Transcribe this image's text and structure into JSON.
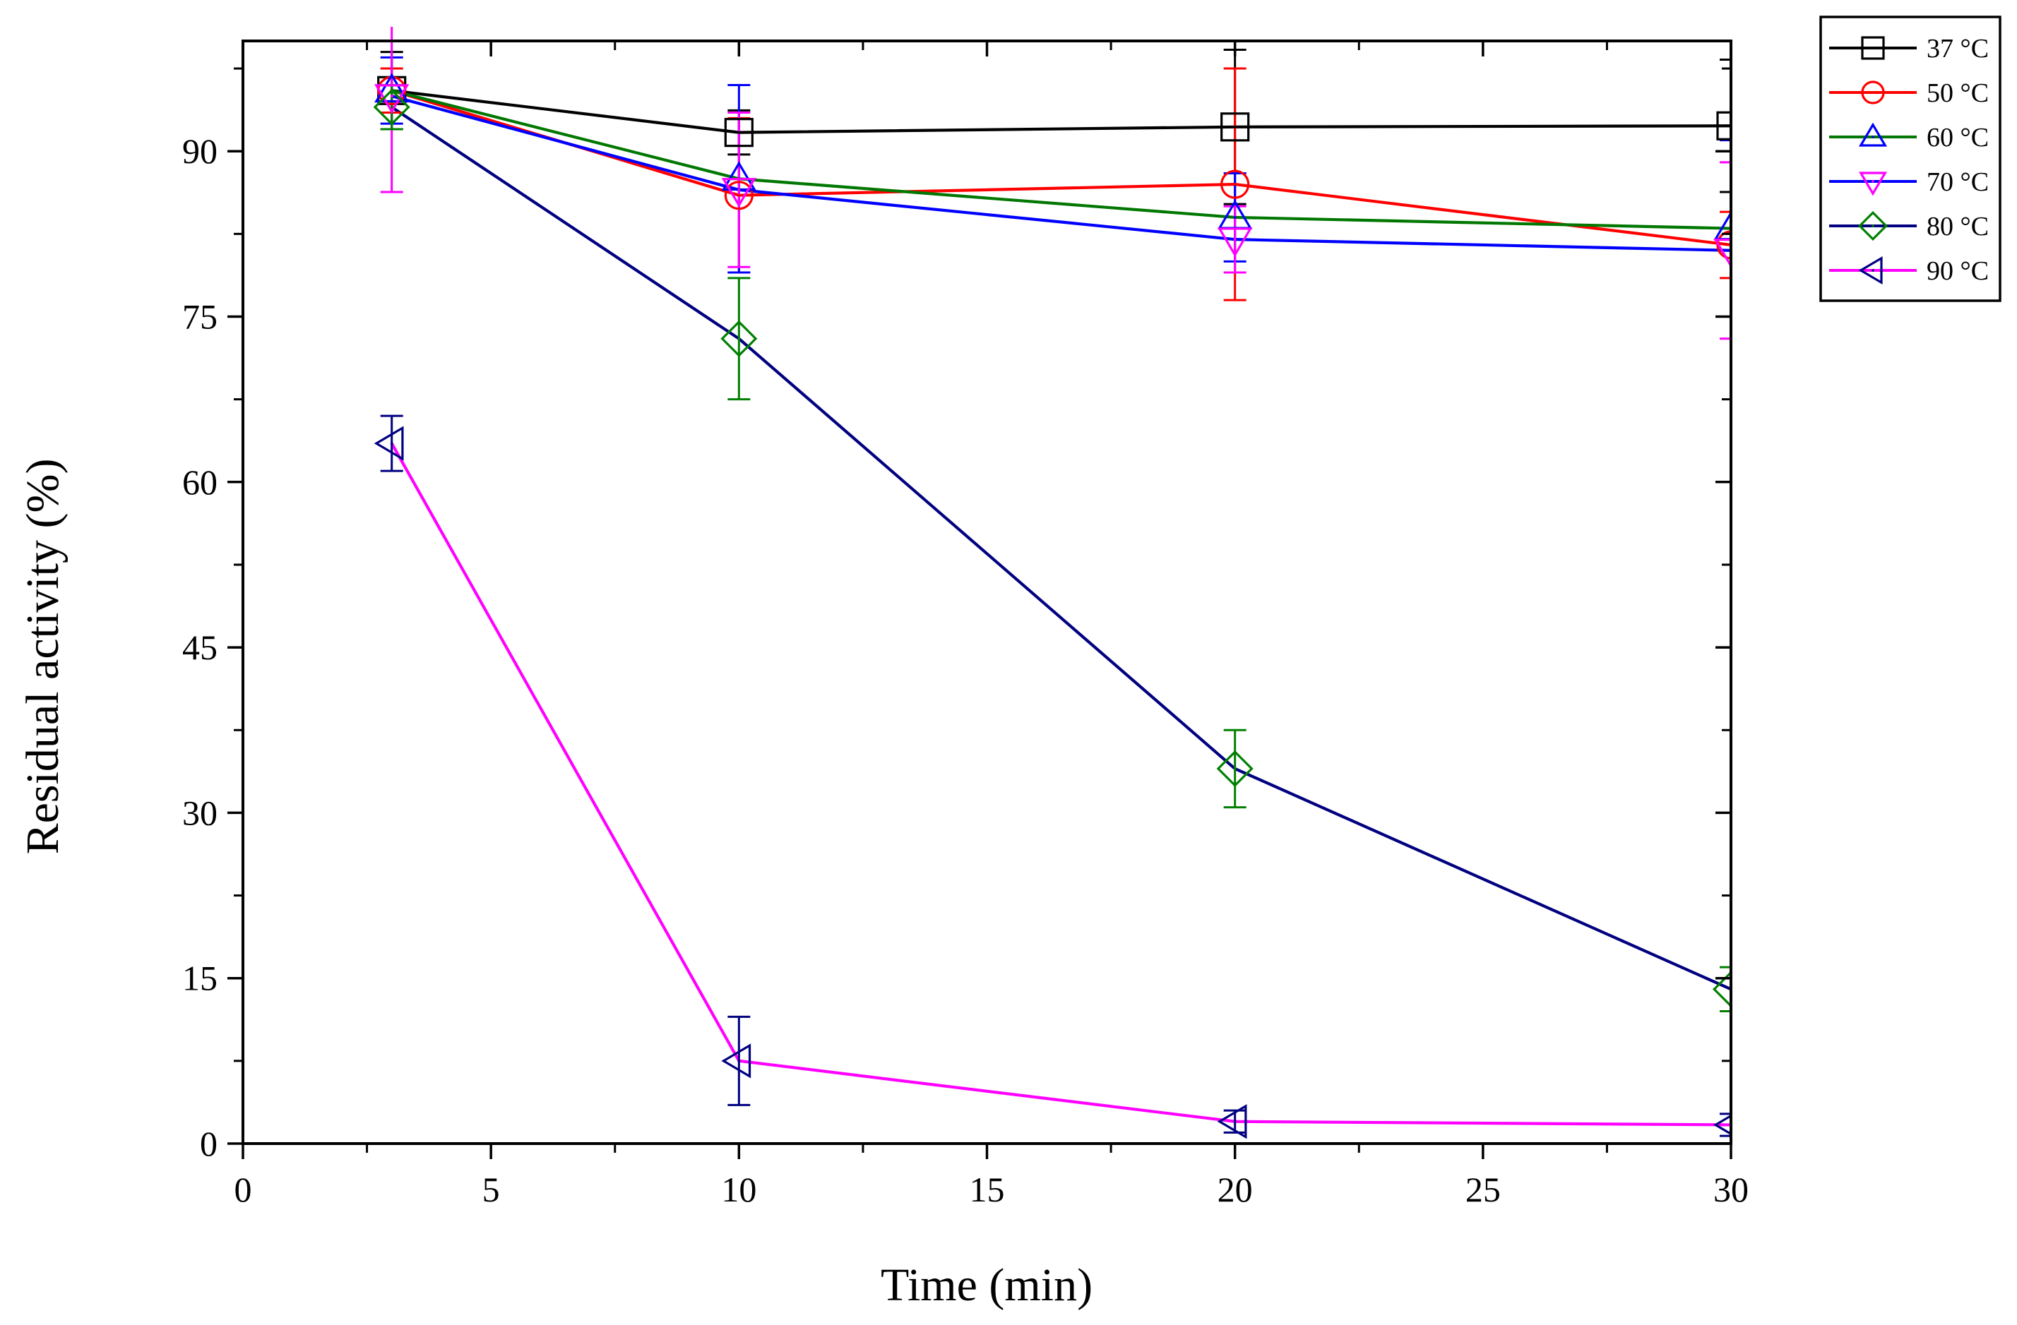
{
  "chart_data": {
    "type": "line",
    "title": "",
    "xlabel": "Time (min)",
    "ylabel": "Residual activity (%)",
    "xlim": [
      0,
      30
    ],
    "ylim": [
      0,
      100
    ],
    "xticks": [
      0,
      5,
      10,
      15,
      20,
      25,
      30
    ],
    "yticks": [
      0,
      15,
      30,
      45,
      60,
      75,
      90
    ],
    "x": [
      3,
      10,
      20,
      30
    ],
    "legend_position": "outside-top-right",
    "series": [
      {
        "name": "37 °C",
        "color": "#000000",
        "marker": "square",
        "line_color": "#000000",
        "values": [
          95.5,
          91.7,
          92.2,
          92.3
        ],
        "errors": [
          3.5,
          2.0,
          7.0,
          6.0
        ]
      },
      {
        "name": "50 °C",
        "color": "#ff0000",
        "marker": "circle",
        "line_color": "#ff0000",
        "values": [
          95.5,
          86.0,
          87.0,
          81.5
        ],
        "errors": [
          2.0,
          7.0,
          10.5,
          3.0
        ]
      },
      {
        "name": "60 °C",
        "color": "#0000ff",
        "marker": "triangle-up",
        "line_color": "#007700",
        "values": [
          95.5,
          87.5,
          84.0,
          83.0
        ],
        "errors": [
          3.0,
          8.5,
          4.0,
          8.0
        ]
      },
      {
        "name": "70 °C",
        "color": "#ff00ff",
        "marker": "triangle-down",
        "line_color": "#0000ff",
        "values": [
          95.0,
          86.5,
          82.0,
          81.0
        ],
        "errors": [
          8.7,
          7.0,
          3.0,
          8.0
        ]
      },
      {
        "name": "80 °C",
        "color": "#008000",
        "marker": "diamond",
        "line_color": "#000080",
        "values": [
          94.0,
          73.0,
          34.0,
          14.0
        ],
        "errors": [
          2.0,
          5.5,
          3.5,
          2.0
        ]
      },
      {
        "name": "90 °C",
        "color": "#000080",
        "marker": "triangle-left",
        "line_color": "#ff00ff",
        "values": [
          63.5,
          7.5,
          2.0,
          1.7
        ],
        "errors": [
          2.5,
          4.0,
          1.0,
          1.0
        ]
      }
    ]
  }
}
